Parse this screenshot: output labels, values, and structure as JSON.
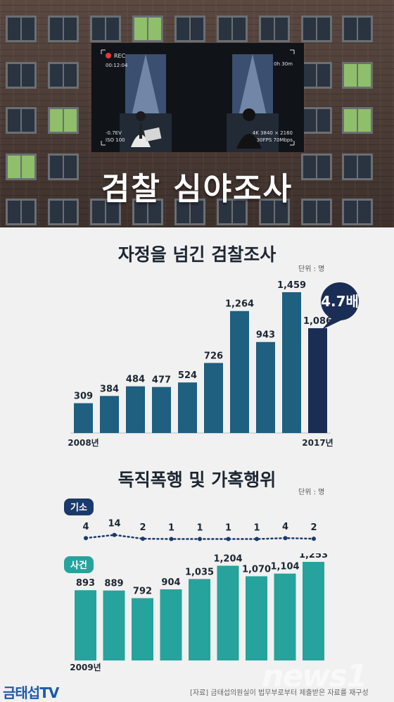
{
  "hero": {
    "title": "검찰 심야조사",
    "camera": {
      "rec": "REC",
      "time": "00:12:04",
      "remaining": "0h 30m",
      "ev": "-0.7EV",
      "iso": "ISO 100",
      "resolution": "4K 3840 × 2160",
      "fps": "30FPS 70Mbps"
    }
  },
  "chart_data": [
    {
      "type": "bar",
      "title": "자정을 넘긴 검찰조사",
      "unit": "단위 : 명",
      "categories": [
        "2008년",
        "",
        "",
        "",
        "",
        "",
        "",
        "",
        "",
        "2017년"
      ],
      "values": [
        309,
        384,
        484,
        477,
        524,
        726,
        1264,
        943,
        1459,
        1086
      ],
      "value_labels": [
        "309",
        "384",
        "484",
        "477",
        "524",
        "726",
        "1,264",
        "943",
        "1,459",
        "1,086"
      ],
      "highlight_index": 9,
      "callout": "4.7배",
      "colors": {
        "bar": "#1f5f7f",
        "highlight": "#1a2d54"
      }
    },
    {
      "type": "line",
      "title": "독직폭행 및 가혹행위",
      "unit": "단위 : 명",
      "series": [
        {
          "name": "기소",
          "values": [
            4,
            14,
            2,
            1,
            1,
            1,
            1,
            4,
            2
          ]
        }
      ],
      "color": "#1a3a6b"
    },
    {
      "type": "bar",
      "categories": [
        "2009년",
        "",
        "",
        "",
        "",
        "",
        "",
        "",
        ""
      ],
      "series": [
        {
          "name": "사건",
          "values": [
            893,
            889,
            792,
            904,
            1035,
            1204,
            1070,
            1104,
            1253
          ]
        }
      ],
      "value_labels": [
        "893",
        "889",
        "792",
        "904",
        "1,035",
        "1,204",
        "1,070",
        "1,104",
        "1,253"
      ],
      "color": "#26a39c"
    }
  ],
  "footer": {
    "logo": "금태섭TV",
    "source": "[자료] 금태섭의원실이 법무부로부터 제출받은 자료를 재구성",
    "watermark": "news1"
  }
}
